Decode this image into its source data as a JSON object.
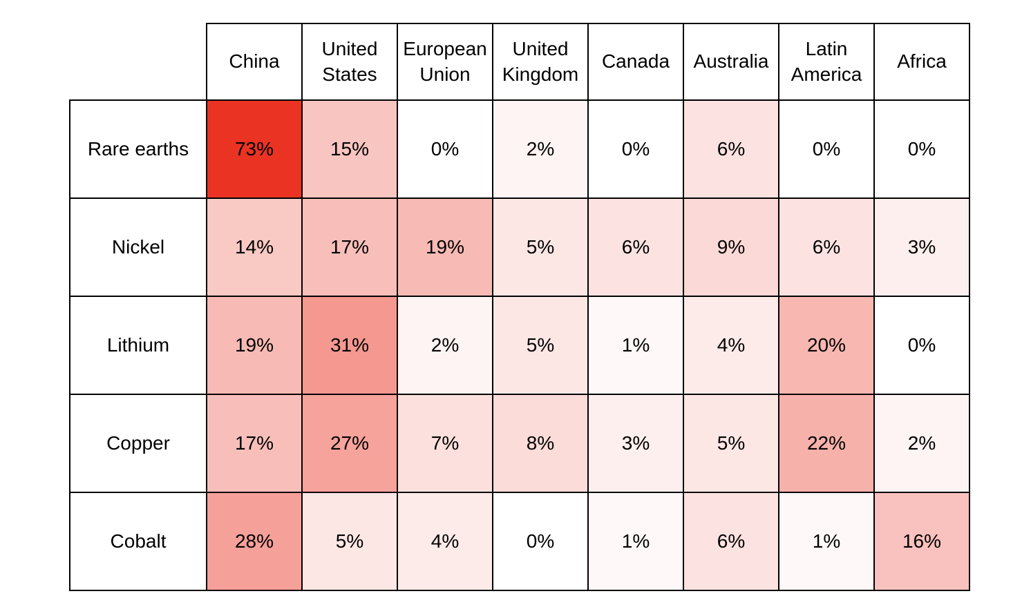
{
  "chart_data": {
    "type": "heatmap",
    "title": "",
    "columns": [
      "China",
      "United States",
      "European Union",
      "United Kingdom",
      "Canada",
      "Australia",
      "Latin America",
      "Africa"
    ],
    "rows": [
      "Rare earths",
      "Nickel",
      "Lithium",
      "Copper",
      "Cobalt"
    ],
    "values": [
      [
        73,
        15,
        0,
        2,
        0,
        6,
        0,
        0
      ],
      [
        14,
        17,
        19,
        5,
        6,
        9,
        6,
        3
      ],
      [
        19,
        31,
        2,
        5,
        1,
        4,
        20,
        0
      ],
      [
        17,
        27,
        7,
        8,
        3,
        5,
        22,
        2
      ],
      [
        28,
        5,
        4,
        0,
        1,
        6,
        1,
        16
      ]
    ],
    "value_suffix": "%",
    "color_scale": {
      "min_color": "#FFFFFF",
      "max_color": "#EA3323",
      "max_value": 73,
      "exponent": 0.8
    },
    "grid_color": "#000000",
    "text_color": "#000000",
    "legend_position": "none",
    "grid": true
  }
}
